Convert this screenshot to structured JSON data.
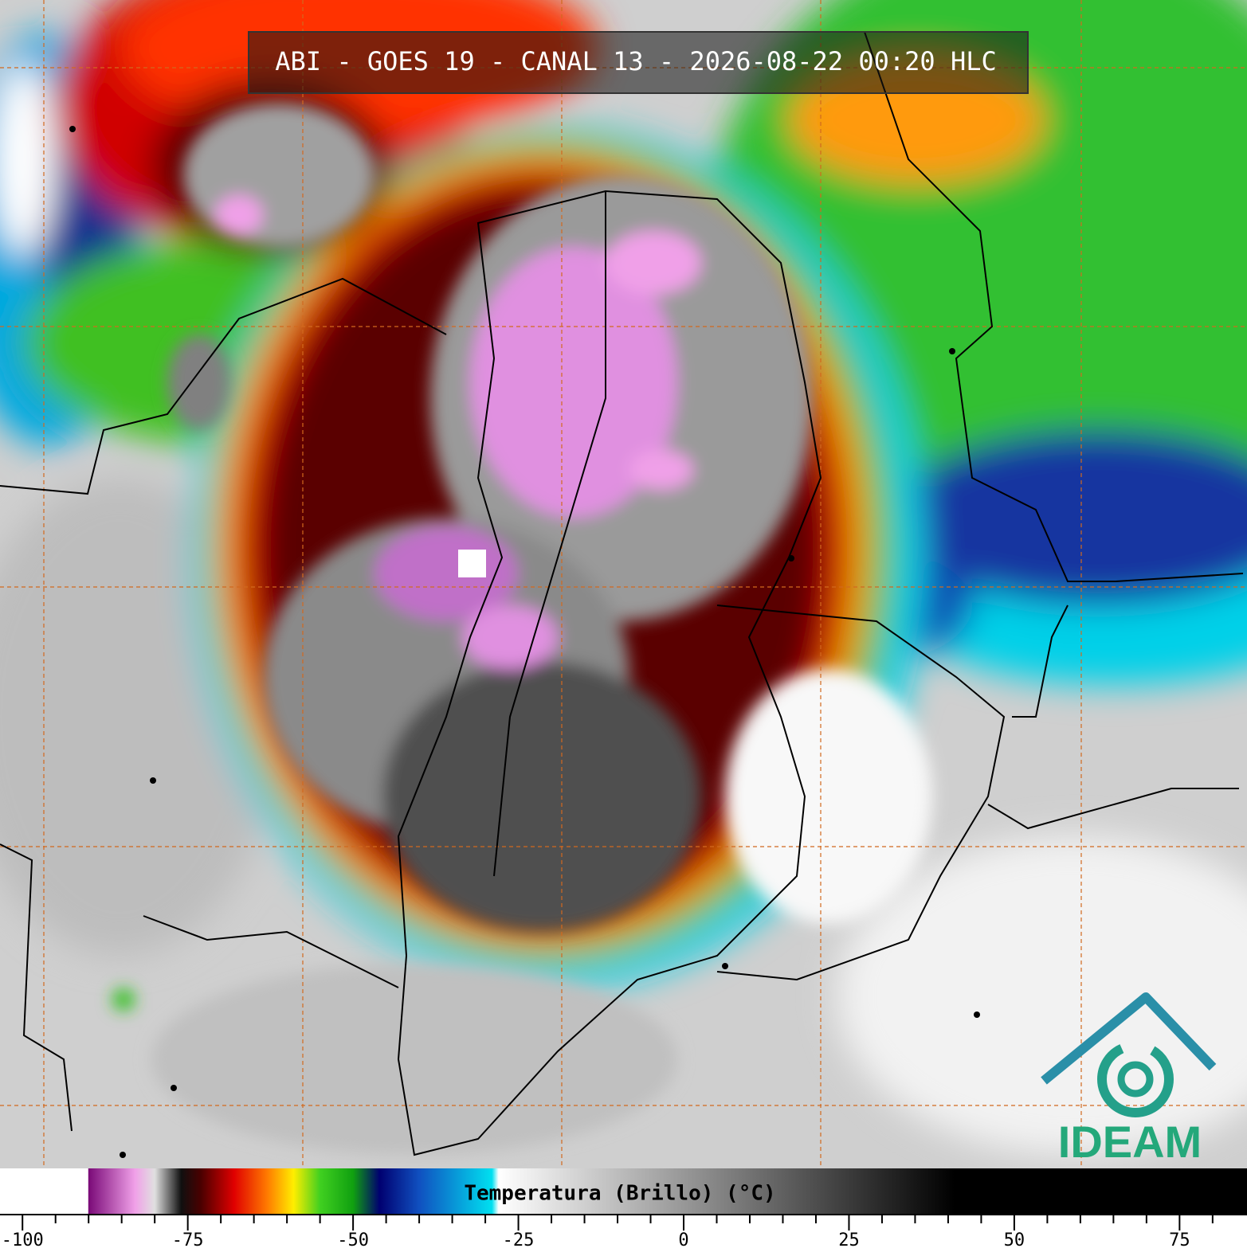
{
  "title": "ABI - GOES 19 - CANAL 13 - 2026-08-22 00:20 HLC",
  "colorbar": {
    "label": "Temperatura (Brillo) (°C)",
    "xlim": [
      -103.4,
      85.2
    ],
    "xticks": [
      -100,
      -75,
      -50,
      -25,
      0,
      25,
      50,
      75
    ],
    "minor_xticks": [
      -95,
      -90,
      -85,
      -80,
      -70,
      -65,
      -60,
      -55,
      -45,
      -40,
      -35,
      -30,
      -20,
      -15,
      -10,
      -5,
      5,
      10,
      15,
      20,
      30,
      35,
      40,
      45,
      55,
      60,
      65,
      70,
      80
    ],
    "stops": [
      {
        "value": -103.4,
        "color": "#ffffff"
      },
      {
        "value": -90.1,
        "color": "#ffffff"
      },
      {
        "value": -90,
        "color": "#7a0a78"
      },
      {
        "value": -83,
        "color": "#f0a0e8"
      },
      {
        "value": -80,
        "color": "#e0e0e0"
      },
      {
        "value": -76,
        "color": "#101010"
      },
      {
        "value": -73,
        "color": "#4a0000"
      },
      {
        "value": -68,
        "color": "#e00000"
      },
      {
        "value": -63,
        "color": "#ff7a00"
      },
      {
        "value": -59,
        "color": "#ffee00"
      },
      {
        "value": -55,
        "color": "#40d020"
      },
      {
        "value": -50,
        "color": "#10a010"
      },
      {
        "value": -46,
        "color": "#000070"
      },
      {
        "value": -40,
        "color": "#1050c0"
      },
      {
        "value": -29,
        "color": "#00e0f0"
      },
      {
        "value": -28,
        "color": "#ffffff"
      },
      {
        "value": 41,
        "color": "#000000"
      },
      {
        "value": 85.2,
        "color": "#000000"
      }
    ]
  },
  "logo": "IDEAM"
}
